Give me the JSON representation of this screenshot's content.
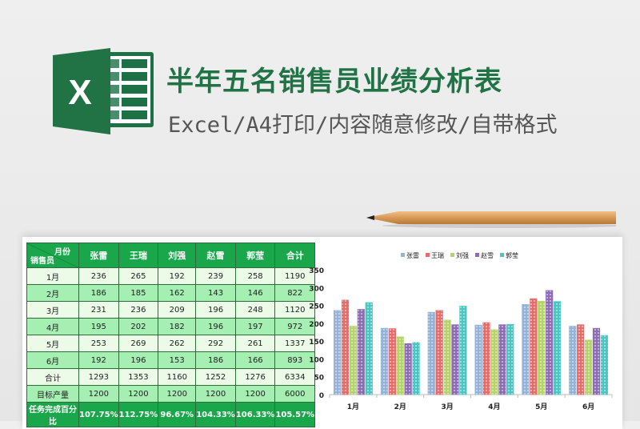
{
  "header": {
    "title": "半年五名销售员业绩分析表",
    "subtitle": "Excel/A4打印/内容随意修改/自带格式",
    "logo_letter": "X"
  },
  "table": {
    "corner_top": "月份",
    "corner_bottom": "销售员",
    "columns": [
      "张雷",
      "王瑞",
      "刘强",
      "赵雪",
      "郭莹",
      "合计"
    ],
    "rows": [
      {
        "label": "1月",
        "values": [
          "236",
          "265",
          "192",
          "239",
          "258",
          "1190"
        ]
      },
      {
        "label": "2月",
        "values": [
          "186",
          "185",
          "162",
          "143",
          "146",
          "822"
        ]
      },
      {
        "label": "3月",
        "values": [
          "231",
          "236",
          "209",
          "196",
          "248",
          "1120"
        ]
      },
      {
        "label": "4月",
        "values": [
          "195",
          "202",
          "182",
          "196",
          "197",
          "972"
        ]
      },
      {
        "label": "5月",
        "values": [
          "253",
          "269",
          "262",
          "292",
          "261",
          "1337"
        ]
      },
      {
        "label": "6月",
        "values": [
          "192",
          "196",
          "153",
          "186",
          "166",
          "893"
        ]
      },
      {
        "label": "合计",
        "values": [
          "1293",
          "1353",
          "1160",
          "1252",
          "1276",
          "6334"
        ]
      },
      {
        "label": "目标产量",
        "values": [
          "1200",
          "1200",
          "1200",
          "1200",
          "1200",
          "6000"
        ]
      },
      {
        "label": "任务完成百分比",
        "values": [
          "107.75%",
          "112.75%",
          "96.67%",
          "104.33%",
          "106.33%",
          "105.57%"
        ]
      }
    ]
  },
  "chart_data": {
    "type": "bar",
    "categories": [
      "1月",
      "2月",
      "3月",
      "4月",
      "5月",
      "6月"
    ],
    "series": [
      {
        "name": "张雷",
        "values": [
          236,
          186,
          231,
          195,
          253,
          192
        ],
        "color": "#95b3d7"
      },
      {
        "name": "王瑞",
        "values": [
          265,
          185,
          236,
          202,
          269,
          196
        ],
        "color": "#e46c6a"
      },
      {
        "name": "刘强",
        "values": [
          192,
          162,
          209,
          182,
          262,
          153
        ],
        "color": "#b5d36b"
      },
      {
        "name": "赵雪",
        "values": [
          239,
          143,
          196,
          196,
          292,
          186
        ],
        "color": "#8e6bb5"
      },
      {
        "name": "郭莹",
        "values": [
          258,
          146,
          248,
          197,
          261,
          166
        ],
        "color": "#4bc5c1"
      }
    ],
    "ylim": [
      0,
      350
    ],
    "yticks": [
      0,
      50,
      100,
      150,
      200,
      250,
      300,
      350
    ],
    "legend": "top",
    "grid": false
  }
}
